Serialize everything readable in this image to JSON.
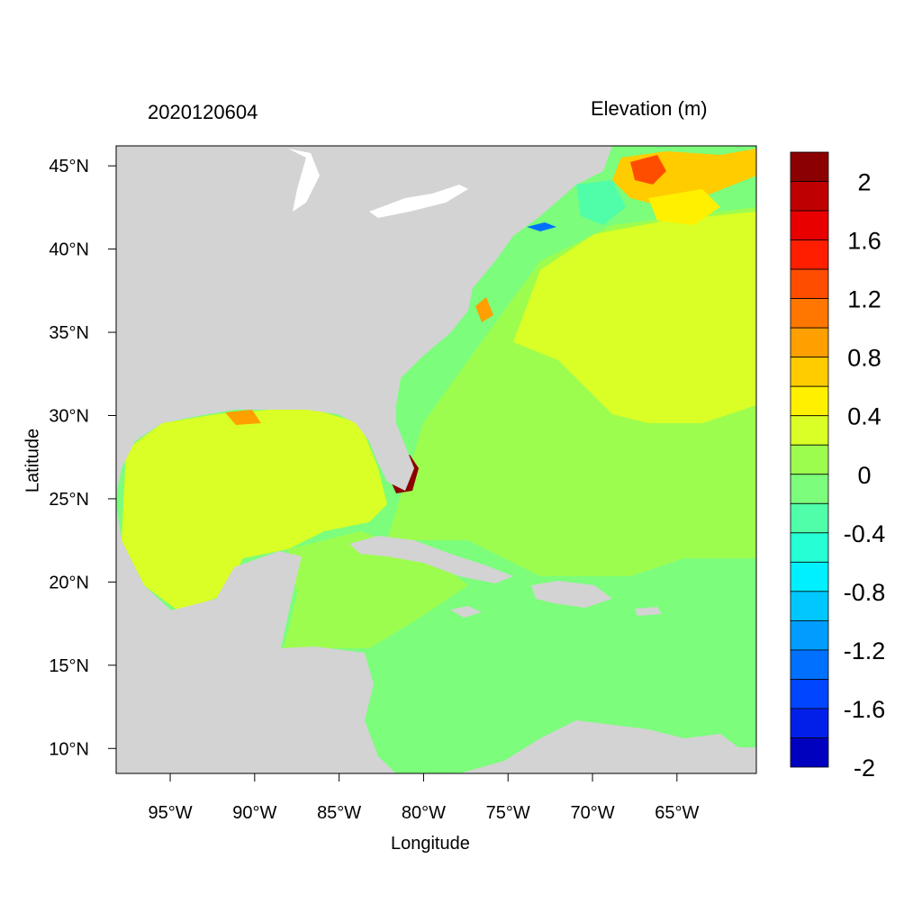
{
  "figure": {
    "title_left": "2020120604",
    "title_right": "Elevation (m)",
    "x_axis_label": "Longitude",
    "y_axis_label": "Latitude"
  },
  "map": {
    "type": "filled-contour-map",
    "variable": "Elevation (m)",
    "lon_range": [
      -98.2,
      -60.3
    ],
    "lat_range": [
      8.5,
      46.2
    ],
    "x_ticks": [
      "95°W",
      "90°W",
      "85°W",
      "80°W",
      "75°W",
      "70°W",
      "65°W"
    ],
    "x_tick_values": [
      -95,
      -90,
      -85,
      -80,
      -75,
      -70,
      -65
    ],
    "y_ticks": [
      "45°N",
      "40°N",
      "35°N",
      "30°N",
      "25°N",
      "20°N",
      "15°N",
      "10°N"
    ],
    "y_tick_values": [
      45,
      40,
      35,
      30,
      25,
      20,
      15,
      10
    ],
    "land_color": "#d3d3d3",
    "water_base_color": "#7cfd7c"
  },
  "colorbar": {
    "labels": [
      "2",
      "1.6",
      "1.2",
      "0.8",
      "0.4",
      "0",
      "-0.4",
      "-0.8",
      "-1.2",
      "-1.6",
      "-2"
    ],
    "colors_top_to_bottom": [
      "#8b0000",
      "#bf0000",
      "#e80000",
      "#ff1f00",
      "#ff4d00",
      "#ff7700",
      "#ff9f00",
      "#ffcc00",
      "#fff000",
      "#d9ff26",
      "#9dfd4f",
      "#7cfd7c",
      "#50fda8",
      "#26ffd5",
      "#00f0ff",
      "#00c8ff",
      "#009dff",
      "#0070ff",
      "#0045ff",
      "#0020ea",
      "#0000bf"
    ]
  }
}
